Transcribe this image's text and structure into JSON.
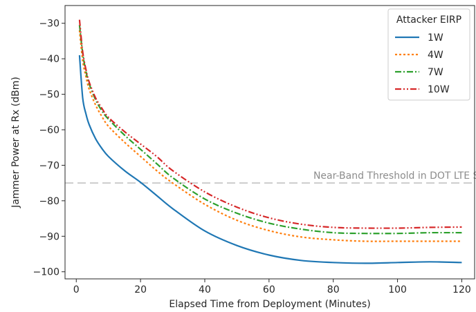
{
  "chart_data": {
    "type": "line",
    "title": "",
    "xlabel": "Elapsed Time from Deployment (Minutes)",
    "ylabel": "Jammer Power at Rx (dBm)",
    "xlim": [
      -3.5,
      124
    ],
    "ylim": [
      -102,
      -25
    ],
    "xticks": [
      0,
      20,
      40,
      60,
      80,
      100,
      120
    ],
    "yticks": [
      -100,
      -90,
      -80,
      -70,
      -60,
      -50,
      -40,
      -30
    ],
    "grid": false,
    "legend": {
      "title": "Attacker EIRP",
      "placement": "top-right"
    },
    "threshold": {
      "value": -75,
      "label": "Near-Band Threshold in DOT LTE Study",
      "color": "#cccccc"
    },
    "x": [
      1,
      2,
      3,
      4,
      6,
      8,
      10,
      15,
      20,
      25,
      30,
      40,
      50,
      60,
      70,
      80,
      90,
      100,
      110,
      120
    ],
    "series": [
      {
        "name": "1W",
        "color": "#1f77b4",
        "dash": "solid",
        "values": [
          -39,
          -51,
          -55.5,
          -58.5,
          -62.5,
          -65.3,
          -67.5,
          -71.5,
          -74.8,
          -78.5,
          -82.2,
          -88.5,
          -92.6,
          -95.3,
          -96.8,
          -97.4,
          -97.6,
          -97.4,
          -97.2,
          -97.4
        ]
      },
      {
        "name": "4W",
        "color": "#ff7f0e",
        "dash": "dotted",
        "values": [
          -32,
          -40.5,
          -45,
          -48.5,
          -53,
          -56.3,
          -59,
          -63.5,
          -67.5,
          -71.5,
          -75,
          -81,
          -85.5,
          -88.4,
          -90.2,
          -91,
          -91.4,
          -91.4,
          -91.4,
          -91.4
        ]
      },
      {
        "name": "7W",
        "color": "#2ca02c",
        "dash": "dashdot",
        "values": [
          -30.5,
          -38.5,
          -43.5,
          -47,
          -51.5,
          -54.7,
          -57,
          -61.5,
          -65.5,
          -69.5,
          -73.5,
          -79.5,
          -83.5,
          -86.3,
          -88,
          -89,
          -89.2,
          -89.2,
          -89,
          -89
        ]
      },
      {
        "name": "10W",
        "color": "#d62728",
        "dash": "dashdotdot",
        "values": [
          -29,
          -38,
          -43,
          -46.5,
          -51,
          -54,
          -56.5,
          -60.5,
          -64,
          -67.5,
          -71.5,
          -77.5,
          -81.8,
          -84.8,
          -86.6,
          -87.5,
          -87.7,
          -87.7,
          -87.5,
          -87.4
        ]
      }
    ]
  }
}
